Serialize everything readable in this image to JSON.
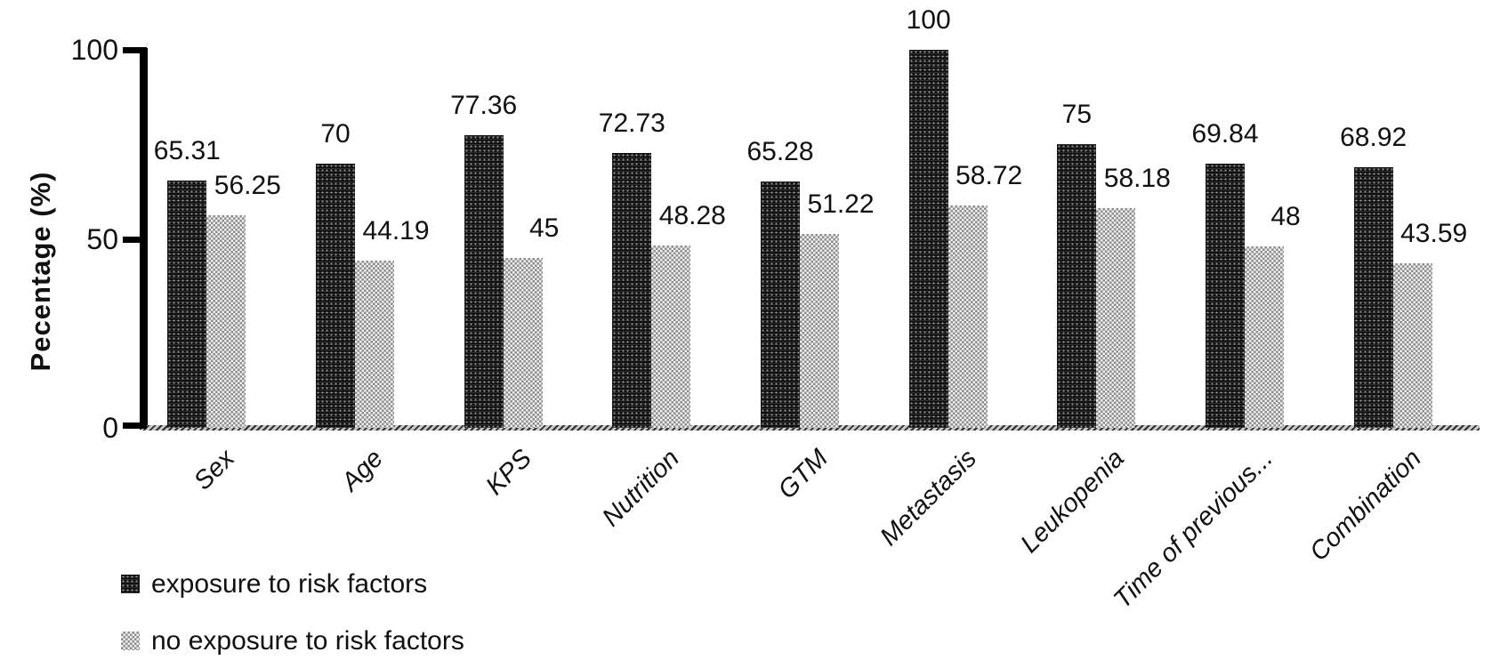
{
  "chart_data": {
    "type": "bar",
    "title": "",
    "xlabel": "",
    "ylabel": "Pecentage (%)",
    "ylim": [
      0,
      100
    ],
    "ytick_labels": [
      "100",
      "50",
      "0"
    ],
    "ytick_values": [
      100,
      50,
      0
    ],
    "grid": false,
    "legend_position": "bottom-left",
    "categories": [
      "Sex",
      "Age",
      "KPS",
      "Nutrition",
      "GTM",
      "Metastasis",
      "Leukopenia",
      "Time of previous...",
      "Combination"
    ],
    "series": [
      {
        "name": "exposure to risk factors",
        "swatch": "dark-checker",
        "values": [
          65.31,
          70,
          77.36,
          72.73,
          65.28,
          100,
          75,
          69.84,
          68.92
        ],
        "labels": [
          "65.31",
          "70",
          "77.36",
          "72.73",
          "65.28",
          "100",
          "75",
          "69.84",
          "68.92"
        ]
      },
      {
        "name": "no exposure to risk factors",
        "swatch": "light-checker",
        "values": [
          56.25,
          44.19,
          45,
          48.28,
          51.22,
          58.72,
          58.18,
          48,
          43.59
        ],
        "labels": [
          "56.25",
          "44.19",
          "45",
          "48.28",
          "51.22",
          "58.72",
          "58.18",
          "48",
          "43.59"
        ]
      }
    ],
    "colors": {
      "dark_bar": "#1a1a1a",
      "light_bar": "#b8b8b8",
      "axis": "#000000",
      "text": "#111111",
      "background": "#ffffff"
    }
  }
}
